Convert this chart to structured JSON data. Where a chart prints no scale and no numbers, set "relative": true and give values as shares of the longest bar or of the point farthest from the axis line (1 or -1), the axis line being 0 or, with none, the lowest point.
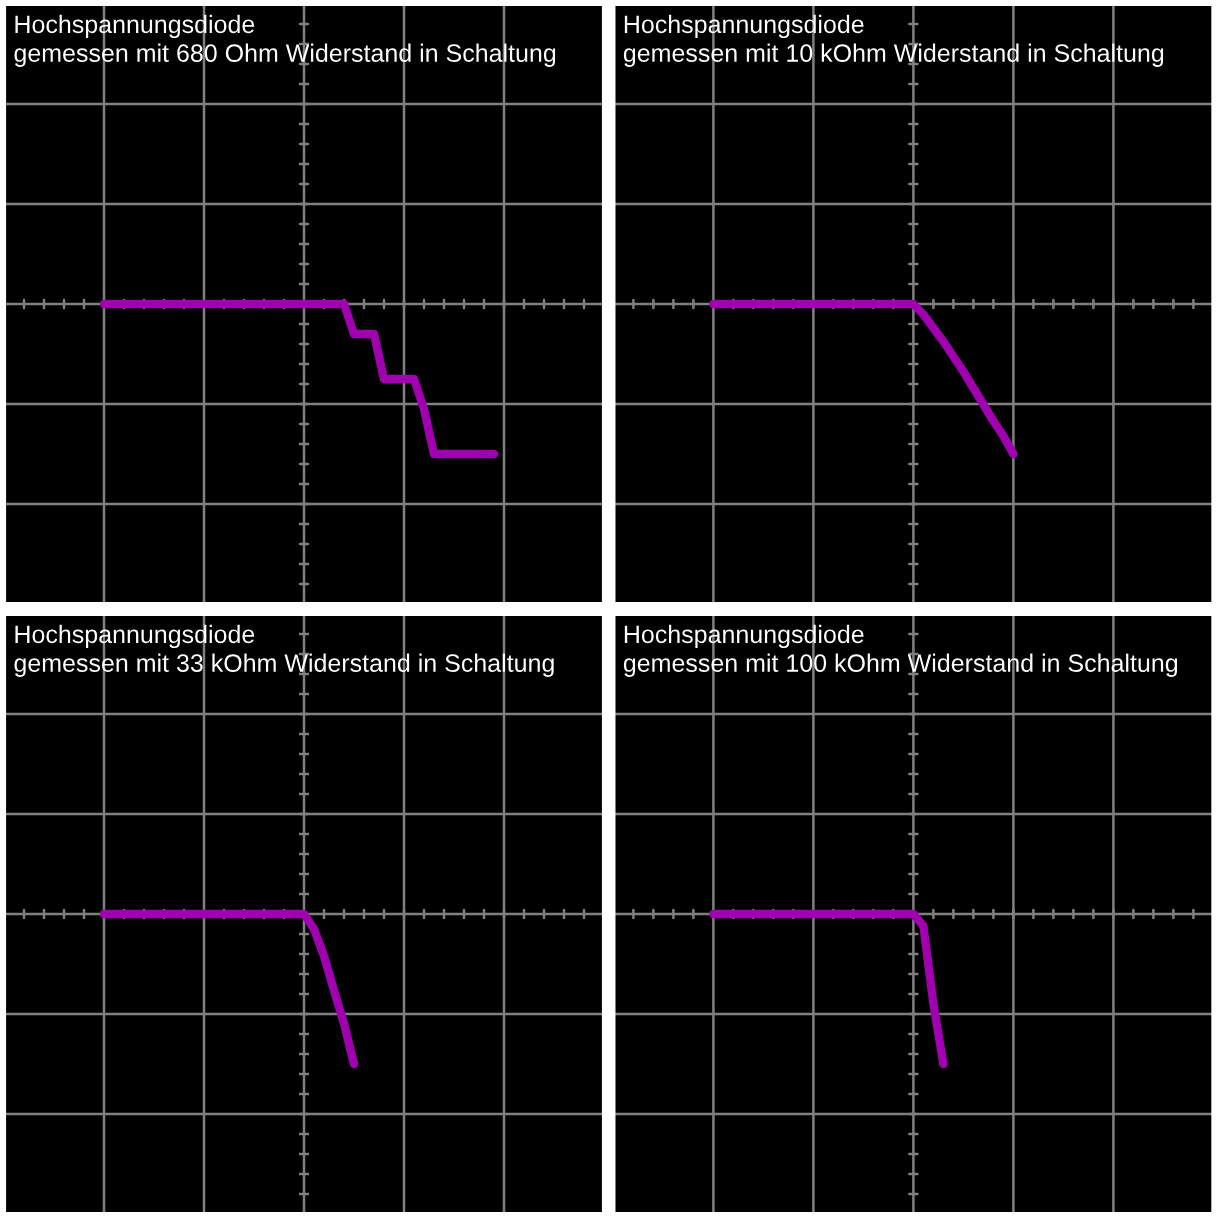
{
  "chart_data": [
    {
      "type": "line",
      "title": "Hochspannungsdiode",
      "subtitle": "gemessen mit 680 Ohm Widerstand in Schaltung",
      "relative": true,
      "grid": true,
      "categories": [
        null,
        null,
        null,
        null,
        null,
        null,
        null,
        null,
        null,
        null,
        null,
        null,
        null,
        null,
        null,
        null,
        null,
        null,
        null,
        null,
        null,
        null,
        null,
        null,
        null,
        null,
        null,
        null,
        null,
        null,
        null,
        null,
        null,
        null,
        null,
        null,
        null,
        null,
        null,
        null
      ],
      "series": [
        {
          "color": "#a000b0",
          "values": [
            0,
            0,
            0,
            0,
            0,
            0,
            0,
            0,
            0,
            0,
            0,
            0,
            0,
            0,
            0,
            0,
            0,
            0,
            0,
            0,
            0,
            0,
            0,
            0,
            0,
            -0.2,
            -0.2,
            -0.2,
            -0.5,
            -0.5,
            -0.5,
            -0.5,
            -0.7,
            -1,
            -1,
            -1,
            -1,
            -1,
            -1,
            -1
          ]
        }
      ]
    },
    {
      "type": "line",
      "title": "Hochspannungsdiode",
      "subtitle": "gemessen mit 10 kOhm Widerstand in Schaltung",
      "relative": true,
      "grid": true,
      "categories": [
        null,
        null,
        null,
        null,
        null,
        null,
        null,
        null,
        null,
        null,
        null,
        null,
        null,
        null,
        null,
        null,
        null,
        null,
        null,
        null,
        null,
        null,
        null,
        null,
        null,
        null,
        null,
        null,
        null,
        null,
        null
      ],
      "series": [
        {
          "color": "#a000b0",
          "values": [
            0,
            0,
            0,
            0,
            0,
            0,
            0,
            0,
            0,
            0,
            0,
            0,
            0,
            0,
            0,
            0,
            0,
            0,
            0,
            0,
            0,
            -0.07,
            -0.16,
            -0.25,
            -0.35,
            -0.45,
            -0.56,
            -0.67,
            -0.78,
            -0.88,
            -1
          ]
        }
      ]
    },
    {
      "type": "line",
      "title": "Hochspannungsdiode",
      "subtitle": "gemessen mit 33 kOhm Widerstand in Schaltung",
      "relative": true,
      "grid": true,
      "categories": [
        null,
        null,
        null,
        null,
        null,
        null,
        null,
        null,
        null,
        null,
        null,
        null,
        null,
        null,
        null,
        null,
        null,
        null,
        null,
        null,
        null,
        null,
        null,
        null,
        null,
        null
      ],
      "series": [
        {
          "color": "#a000b0",
          "values": [
            0,
            0,
            0,
            0,
            0,
            0,
            0,
            0,
            0,
            0,
            0,
            0,
            0,
            0,
            0,
            0,
            0,
            0,
            0,
            0,
            0,
            -0.1,
            -0.28,
            -0.51,
            -0.73,
            -1
          ]
        }
      ]
    },
    {
      "type": "line",
      "title": "Hochspannungsdiode",
      "subtitle": "gemessen mit 100 kOhm Widerstand in Schaltung",
      "relative": true,
      "grid": true,
      "categories": [
        null,
        null,
        null,
        null,
        null,
        null,
        null,
        null,
        null,
        null,
        null,
        null,
        null,
        null,
        null,
        null,
        null,
        null,
        null,
        null,
        null,
        null,
        null,
        null
      ],
      "series": [
        {
          "color": "#a000b0",
          "values": [
            0,
            0,
            0,
            0,
            0,
            0,
            0,
            0,
            0,
            0,
            0,
            0,
            0,
            0,
            0,
            0,
            0,
            0,
            0,
            0,
            0,
            -0.08,
            -0.6,
            -1
          ]
        }
      ]
    }
  ]
}
